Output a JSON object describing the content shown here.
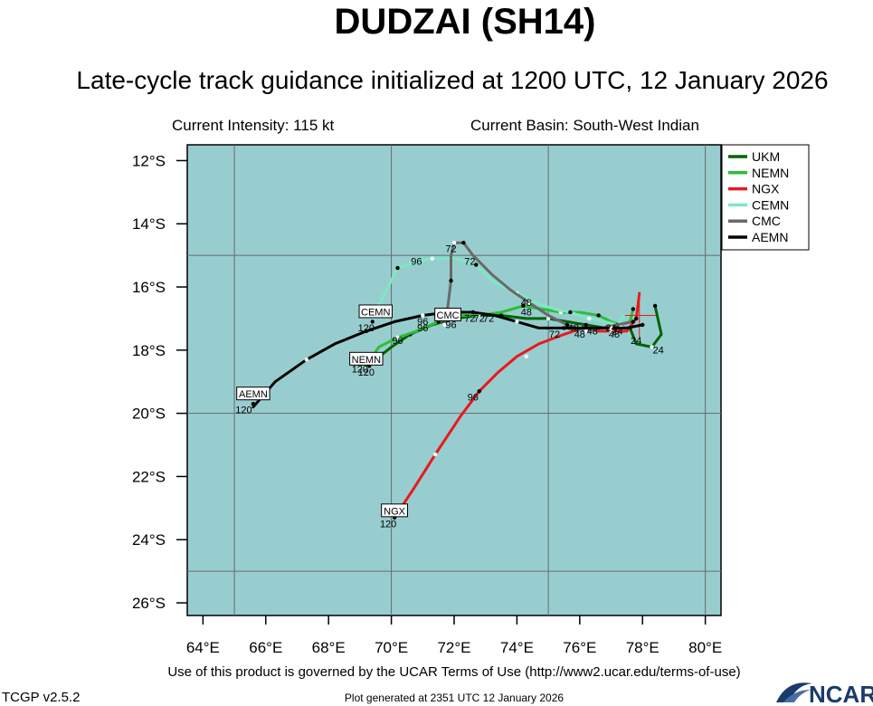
{
  "header": {
    "title": "DUDZAI (SH14)",
    "subtitle": "Late-cycle track guidance initialized at 1200 UTC, 12 January 2026",
    "intensity": "Current Intensity: 115 kt",
    "basin": "Current Basin: South-West Indian"
  },
  "footer": {
    "terms": "Use of this product is governed by the UCAR Terms of Use (http://www2.ucar.edu/terms-of-use)",
    "version": "TCGP v2.5.2",
    "generated": "Plot generated at 2351 UTC   12 January 2026",
    "logo": "NCAR"
  },
  "colors": {
    "ocean": "#98cdcf",
    "grid": "#6a6a6a",
    "logo": "#1a3b6b"
  },
  "chart_data": {
    "type": "line",
    "title": "DUDZAI (SH14)",
    "xlim": [
      63.5,
      80.5
    ],
    "ylim": [
      -26.4,
      -11.5
    ],
    "x_ticks": [
      64,
      66,
      68,
      70,
      72,
      74,
      76,
      78,
      80
    ],
    "x_tick_labels": [
      "64°E",
      "66°E",
      "68°E",
      "70°E",
      "72°E",
      "74°E",
      "76°E",
      "78°E",
      "80°E"
    ],
    "y_ticks": [
      -12,
      -14,
      -16,
      -18,
      -20,
      -22,
      -24,
      -26
    ],
    "y_tick_labels": [
      "12°S",
      "14°S",
      "16°S",
      "18°S",
      "20°S",
      "22°S",
      "24°S",
      "26°S"
    ],
    "grid_lon": [
      65,
      70,
      75,
      80
    ],
    "grid_lat": [
      -15,
      -20,
      -25
    ],
    "legend_position": "top-right",
    "series": [
      {
        "name": "UKM",
        "color": "#006400",
        "points": [
          [
            78.4,
            -16.6
          ],
          [
            78.6,
            -17.5
          ],
          [
            78.3,
            -17.9
          ],
          [
            77.8,
            -17.8
          ],
          [
            77.6,
            -17.3
          ],
          [
            77.3,
            -17.3
          ],
          [
            76.8,
            -17.3
          ],
          [
            76.2,
            -17.2
          ],
          [
            75.6,
            -17.1
          ],
          [
            75.0,
            -17.0
          ],
          [
            74.3,
            -17.0
          ],
          [
            73.5,
            -16.9
          ],
          [
            72.8,
            -16.9
          ],
          [
            72.0,
            -17.0
          ],
          [
            71.3,
            -17.2
          ],
          [
            70.6,
            -17.5
          ],
          [
            70.0,
            -17.9
          ],
          [
            69.5,
            -18.3
          ],
          [
            69.2,
            -18.5
          ]
        ],
        "dots": [
          [
            78.4,
            -16.6
          ],
          [
            78.3,
            -17.9
          ],
          [
            77.6,
            -17.3
          ],
          [
            76.8,
            -17.3
          ],
          [
            76.2,
            -17.2
          ],
          [
            75.0,
            -17.0
          ],
          [
            73.5,
            -16.9
          ],
          [
            72.0,
            -17.0
          ],
          [
            70.6,
            -17.5
          ],
          [
            69.2,
            -18.5
          ]
        ],
        "labels": [
          {
            "text": "24",
            "x": 78.5,
            "y": -18.1
          },
          {
            "text": "48",
            "x": 76.4,
            "y": -17.5
          },
          {
            "text": "72",
            "x": 73.1,
            "y": -17.1
          },
          {
            "text": "96",
            "x": 71.0,
            "y": -17.4
          },
          {
            "text": "120",
            "x": 69.2,
            "y": -18.8
          }
        ],
        "end_label": null
      },
      {
        "name": "NEMN",
        "color": "#2ebd3a",
        "points": [
          [
            77.7,
            -16.7
          ],
          [
            77.6,
            -17.1
          ],
          [
            77.3,
            -17.2
          ],
          [
            77.0,
            -17.1
          ],
          [
            76.6,
            -16.9
          ],
          [
            76.0,
            -16.8
          ],
          [
            75.4,
            -16.8
          ],
          [
            74.8,
            -16.7
          ],
          [
            74.2,
            -16.6
          ],
          [
            73.5,
            -16.8
          ],
          [
            72.8,
            -16.9
          ],
          [
            72.1,
            -16.9
          ],
          [
            71.5,
            -17.1
          ],
          [
            70.8,
            -17.4
          ],
          [
            70.2,
            -17.6
          ],
          [
            69.6,
            -17.9
          ],
          [
            69.2,
            -18.5
          ]
        ],
        "dots": [
          [
            77.7,
            -16.7
          ],
          [
            77.3,
            -17.2
          ],
          [
            76.6,
            -16.9
          ],
          [
            75.4,
            -16.8
          ],
          [
            74.2,
            -16.6
          ],
          [
            72.8,
            -16.9
          ],
          [
            71.5,
            -17.1
          ],
          [
            70.2,
            -17.6
          ],
          [
            69.3,
            -18.5
          ]
        ],
        "labels": [
          {
            "text": "24",
            "x": 77.0,
            "y": -17.4
          },
          {
            "text": "48",
            "x": 74.3,
            "y": -16.9
          },
          {
            "text": "72",
            "x": 72.5,
            "y": -17.1
          },
          {
            "text": "96",
            "x": 70.2,
            "y": -17.8
          },
          {
            "text": "120",
            "x": 69.0,
            "y": -18.7
          }
        ],
        "end_label": {
          "text": "NEMN",
          "x": 69.2,
          "y": -18.3
        }
      },
      {
        "name": "NGX",
        "color": "#e8191e",
        "points": [
          [
            77.9,
            -16.2
          ],
          [
            77.8,
            -17.0
          ],
          [
            77.5,
            -17.4
          ],
          [
            77.0,
            -17.4
          ],
          [
            76.6,
            -17.4
          ],
          [
            76.1,
            -17.3
          ],
          [
            75.5,
            -17.5
          ],
          [
            74.7,
            -17.8
          ],
          [
            74.0,
            -18.2
          ],
          [
            73.4,
            -18.7
          ],
          [
            72.8,
            -19.3
          ],
          [
            72.2,
            -20.1
          ],
          [
            71.4,
            -21.3
          ],
          [
            70.7,
            -22.4
          ],
          [
            70.1,
            -23.3
          ]
        ],
        "dots": [
          [
            77.8,
            -17.0
          ],
          [
            77.0,
            -17.4
          ],
          [
            76.1,
            -17.3
          ],
          [
            74.3,
            -18.2
          ],
          [
            72.8,
            -19.3
          ],
          [
            71.4,
            -21.3
          ],
          [
            70.1,
            -23.3
          ]
        ],
        "labels": [
          {
            "text": "24",
            "x": 77.8,
            "y": -17.8
          },
          {
            "text": "48",
            "x": 77.1,
            "y": -17.6
          },
          {
            "text": "72",
            "x": 75.2,
            "y": -17.6
          },
          {
            "text": "96",
            "x": 72.6,
            "y": -19.6
          },
          {
            "text": "120",
            "x": 69.9,
            "y": -23.6
          }
        ],
        "crosshair": [
          77.9,
          -16.9
        ],
        "end_label": {
          "text": "NGX",
          "x": 70.1,
          "y": -23.1
        }
      },
      {
        "name": "CEMN",
        "color": "#7ee8c4",
        "points": [
          [
            77.4,
            -16.9
          ],
          [
            77.2,
            -17.2
          ],
          [
            76.8,
            -17.1
          ],
          [
            76.3,
            -17.0
          ],
          [
            75.7,
            -16.8
          ],
          [
            75.2,
            -16.7
          ],
          [
            74.6,
            -16.5
          ],
          [
            74.0,
            -16.2
          ],
          [
            73.2,
            -15.8
          ],
          [
            72.7,
            -15.3
          ],
          [
            72.0,
            -15.1
          ],
          [
            71.3,
            -15.1
          ],
          [
            70.8,
            -15.2
          ],
          [
            70.2,
            -15.4
          ],
          [
            69.9,
            -16.0
          ],
          [
            69.6,
            -16.6
          ],
          [
            69.4,
            -17.1
          ]
        ],
        "dots": [
          [
            77.2,
            -17.2
          ],
          [
            76.3,
            -17.0
          ],
          [
            75.7,
            -16.8
          ],
          [
            74.0,
            -16.2
          ],
          [
            72.7,
            -15.3
          ],
          [
            71.3,
            -15.1
          ],
          [
            70.2,
            -15.4
          ],
          [
            69.6,
            -16.6
          ],
          [
            69.4,
            -17.1
          ]
        ],
        "labels": [
          {
            "text": "48",
            "x": 74.3,
            "y": -16.6
          },
          {
            "text": "72",
            "x": 72.5,
            "y": -15.3
          },
          {
            "text": "96",
            "x": 70.8,
            "y": -15.3
          },
          {
            "text": "120",
            "x": 69.2,
            "y": -17.4
          }
        ],
        "end_label": {
          "text": "CEMN",
          "x": 69.5,
          "y": -16.8
        }
      },
      {
        "name": "CMC",
        "color": "#696969",
        "points": [
          [
            77.7,
            -17.1
          ],
          [
            77.2,
            -17.2
          ],
          [
            76.7,
            -17.3
          ],
          [
            76.2,
            -17.4
          ],
          [
            75.6,
            -17.2
          ],
          [
            75.0,
            -16.9
          ],
          [
            74.4,
            -16.5
          ],
          [
            73.8,
            -16.1
          ],
          [
            73.2,
            -15.6
          ],
          [
            72.6,
            -15.0
          ],
          [
            72.3,
            -14.6
          ],
          [
            72.0,
            -14.6
          ],
          [
            71.9,
            -15.0
          ],
          [
            71.9,
            -15.8
          ],
          [
            71.8,
            -16.6
          ],
          [
            71.7,
            -17.2
          ]
        ],
        "dots": [
          [
            77.7,
            -17.1
          ],
          [
            76.2,
            -17.4
          ],
          [
            75.6,
            -17.2
          ],
          [
            74.4,
            -16.5
          ],
          [
            72.3,
            -14.6
          ],
          [
            72.0,
            -14.6
          ],
          [
            71.9,
            -15.8
          ],
          [
            71.7,
            -17.2
          ]
        ],
        "labels": [
          {
            "text": "48",
            "x": 76.0,
            "y": -17.6
          },
          {
            "text": "72",
            "x": 71.9,
            "y": -14.9
          },
          {
            "text": "96",
            "x": 71.9,
            "y": -17.3
          }
        ],
        "end_label": {
          "text": "CMC",
          "x": 71.8,
          "y": -16.9
        }
      },
      {
        "name": "AEMN",
        "color": "#000000",
        "points": [
          [
            78.0,
            -17.2
          ],
          [
            77.5,
            -17.3
          ],
          [
            77.0,
            -17.3
          ],
          [
            76.3,
            -17.3
          ],
          [
            75.5,
            -17.3
          ],
          [
            74.7,
            -17.3
          ],
          [
            74.0,
            -17.1
          ],
          [
            73.3,
            -16.9
          ],
          [
            72.6,
            -16.8
          ],
          [
            71.8,
            -16.8
          ],
          [
            71.0,
            -16.9
          ],
          [
            70.1,
            -17.1
          ],
          [
            69.2,
            -17.4
          ],
          [
            68.2,
            -17.8
          ],
          [
            67.3,
            -18.3
          ],
          [
            66.3,
            -19.0
          ],
          [
            65.6,
            -19.8
          ]
        ],
        "dots": [
          [
            78.0,
            -17.2
          ],
          [
            77.0,
            -17.3
          ],
          [
            75.5,
            -17.3
          ],
          [
            74.0,
            -17.1
          ],
          [
            72.6,
            -16.8
          ],
          [
            71.0,
            -16.9
          ],
          [
            69.2,
            -17.4
          ],
          [
            67.3,
            -18.3
          ],
          [
            65.6,
            -19.7
          ]
        ],
        "labels": [
          {
            "text": "24",
            "x": 77.2,
            "y": -17.5
          },
          {
            "text": "48",
            "x": 75.8,
            "y": -17.4
          },
          {
            "text": "72",
            "x": 72.8,
            "y": -17.1
          },
          {
            "text": "96",
            "x": 71.0,
            "y": -17.2
          },
          {
            "text": "120",
            "x": 65.3,
            "y": -20.0
          }
        ],
        "end_label": {
          "text": "AEMN",
          "x": 65.6,
          "y": -19.4
        }
      }
    ]
  }
}
